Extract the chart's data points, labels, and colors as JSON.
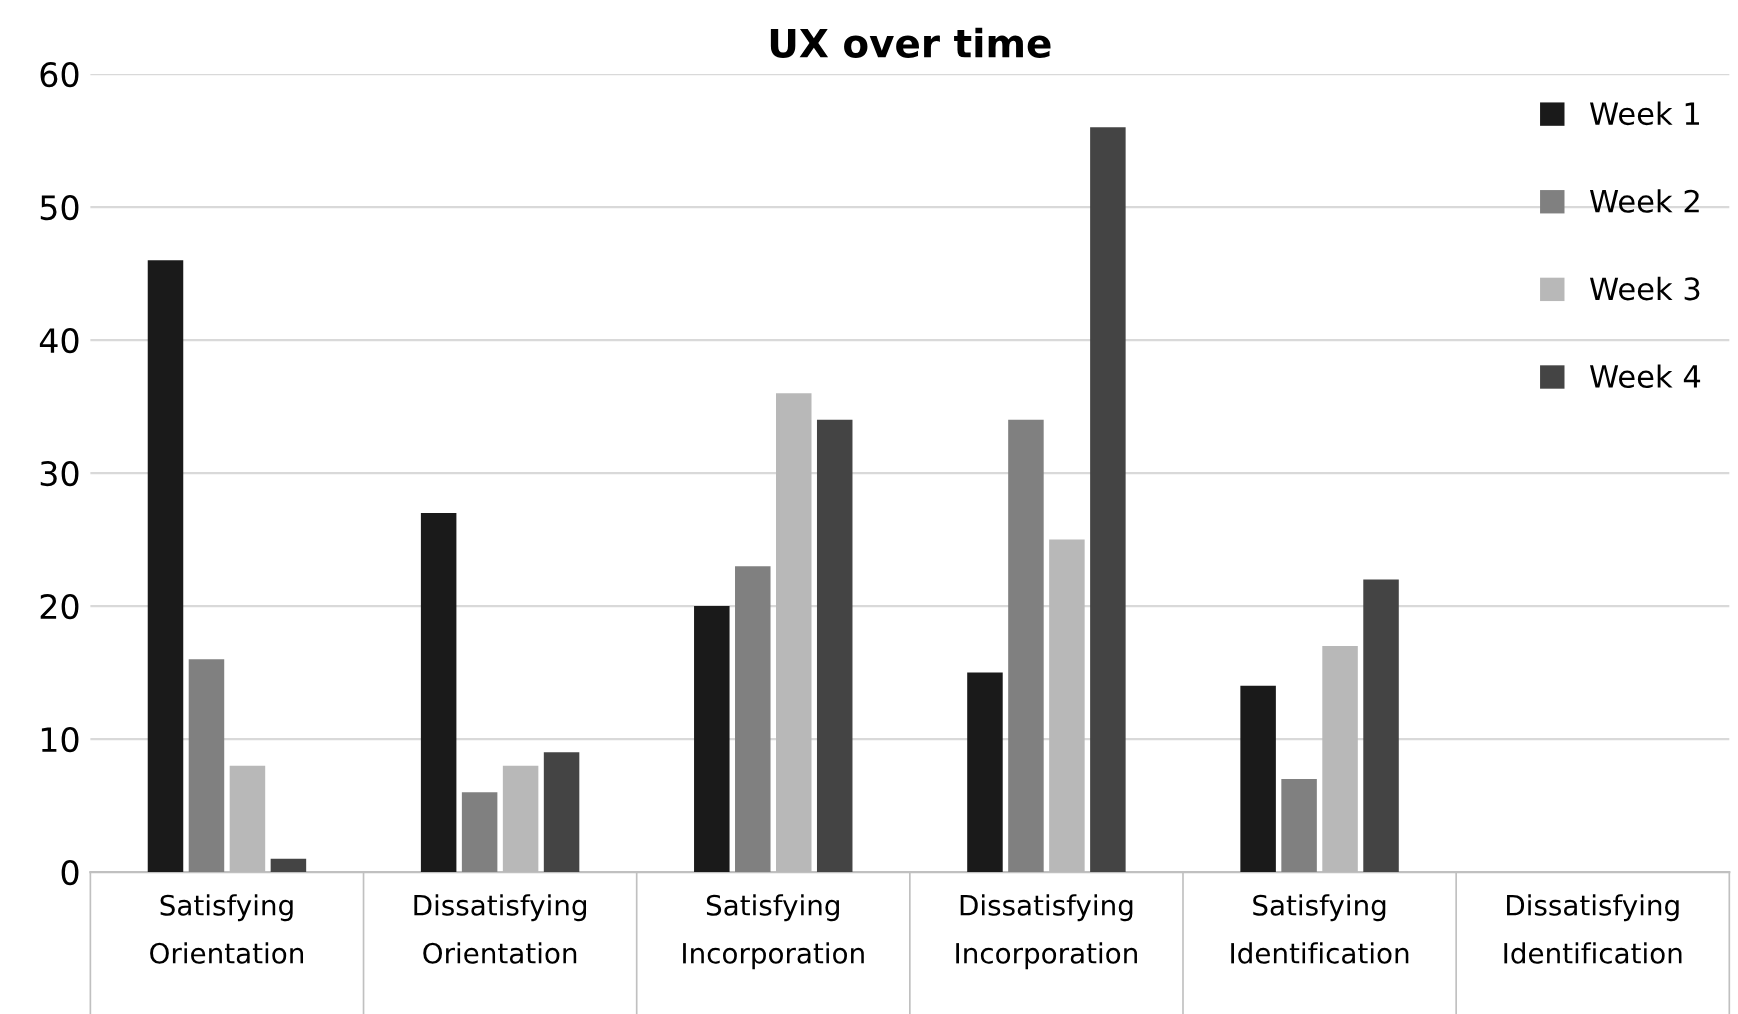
{
  "chart_data": {
    "type": "bar",
    "title": "UX over time",
    "categories": [
      "Satisfying\nOrientation",
      "Dissatisfying\nOrientation",
      "Satisfying\nIncorporation",
      "Dissatisfying\nIncorporation",
      "Satisfying\nIdentification",
      "Dissatisfying\nIdentification"
    ],
    "series": [
      {
        "name": "Week 1",
        "color": "#1a1a1a",
        "values": [
          46,
          27,
          20,
          15,
          14,
          0
        ]
      },
      {
        "name": "Week 2",
        "color": "#808080",
        "values": [
          16,
          6,
          23,
          34,
          7,
          0
        ]
      },
      {
        "name": "Week 3",
        "color": "#b8b8b8",
        "values": [
          8,
          8,
          36,
          25,
          17,
          0
        ]
      },
      {
        "name": "Week 4",
        "color": "#444444",
        "values": [
          1,
          9,
          34,
          56,
          22,
          0
        ]
      }
    ],
    "ylim": [
      0,
      60
    ],
    "yticks": [
      0,
      10,
      20,
      30,
      40,
      50,
      60
    ],
    "grid": "y",
    "legend": "top right"
  }
}
